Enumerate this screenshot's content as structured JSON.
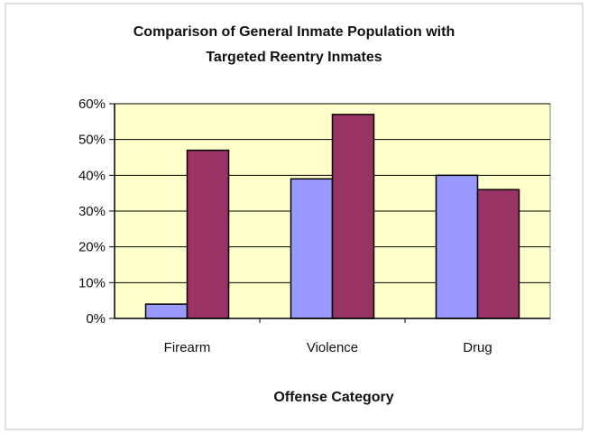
{
  "chart_data": {
    "type": "bar",
    "title": "Comparison of General Inmate Population with",
    "subtitle": "Targeted Reentry  Inmates",
    "xlabel": "Offense Category",
    "ylabel": "",
    "categories": [
      "Firearm",
      "Violence",
      "Drug"
    ],
    "series": [
      {
        "values": [
          4,
          39,
          40
        ],
        "color": "#9999ff"
      },
      {
        "values": [
          47,
          57,
          36
        ],
        "color": "#993366"
      }
    ],
    "ylim": [
      0,
      60
    ],
    "yticks": [
      0,
      10,
      20,
      30,
      40,
      50,
      60
    ],
    "ytick_labels": [
      "0%",
      "10%",
      "20%",
      "30%",
      "40%",
      "50%",
      "60%"
    ],
    "grid": true,
    "legend": "none",
    "plot_background": "#ffffcc",
    "border_color": "#000000"
  }
}
